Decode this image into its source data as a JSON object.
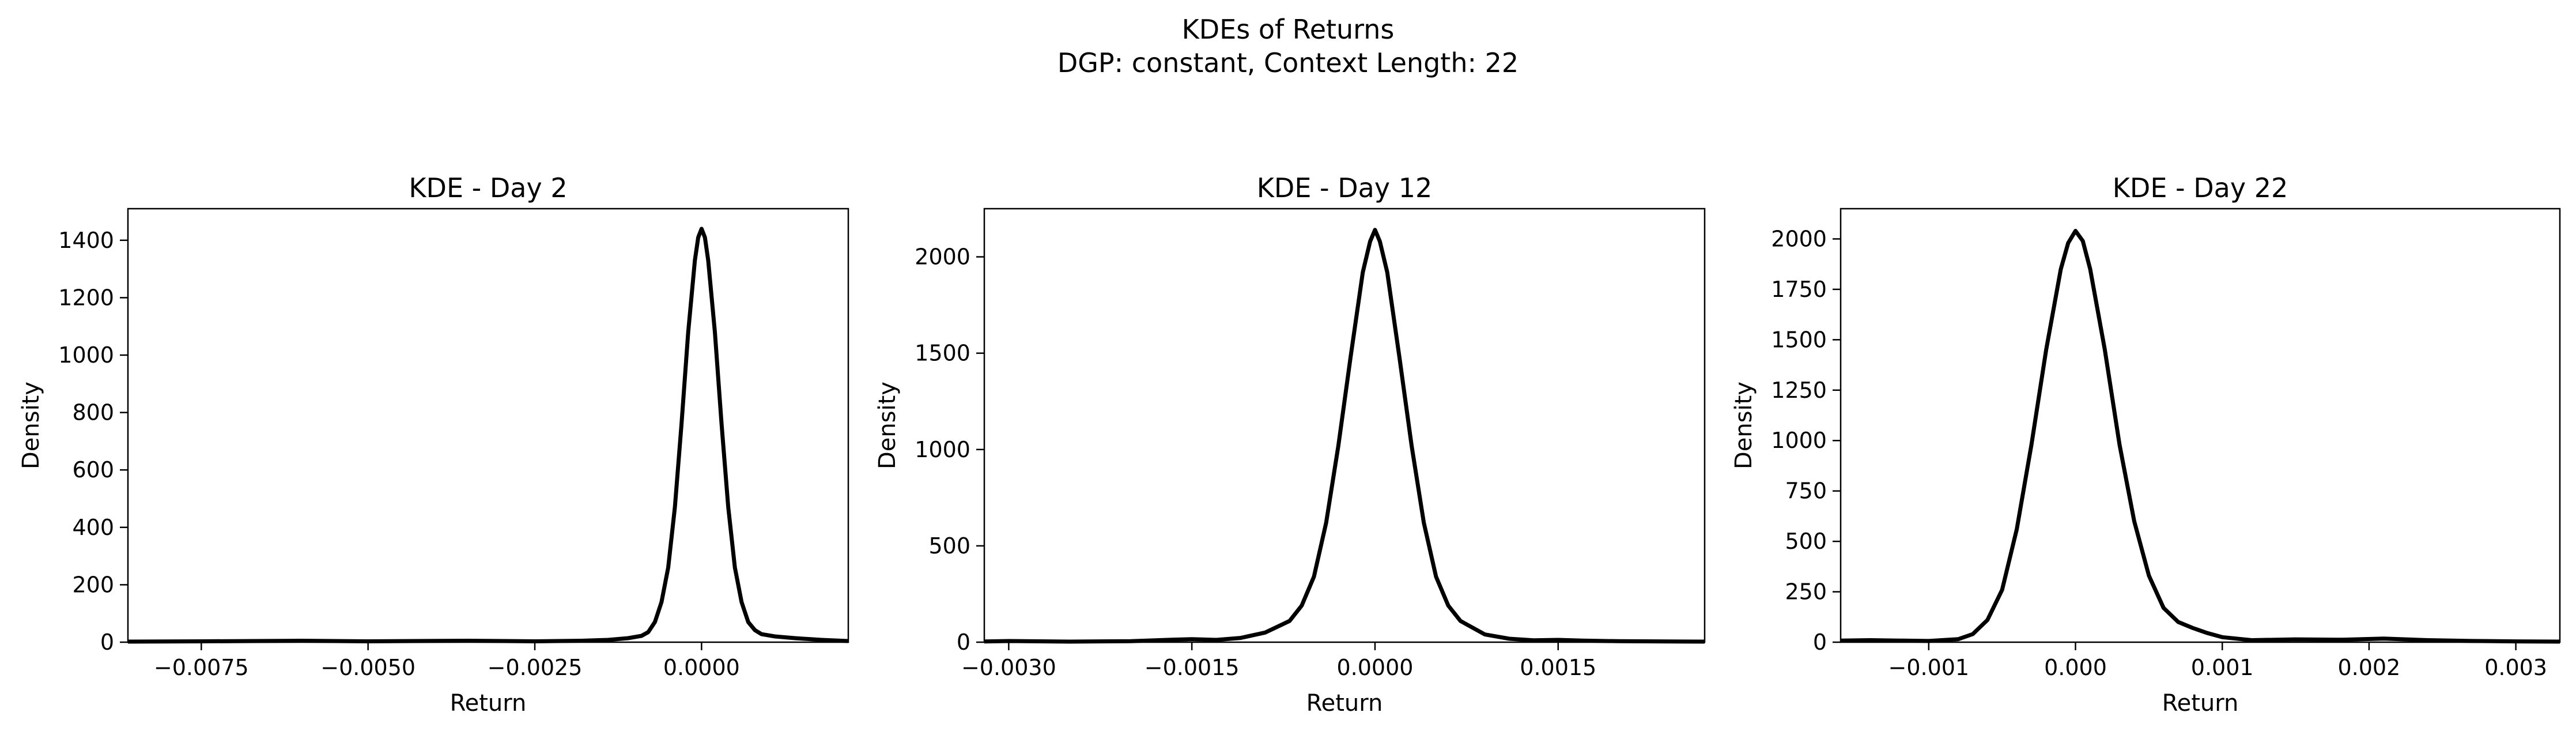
{
  "figure": {
    "title_line1": "KDEs of Returns",
    "title_line2": "DGP: constant, Context Length: 22"
  },
  "chart_data": [
    {
      "type": "line",
      "title": "KDE - Day 2",
      "xlabel": "Return",
      "ylabel": "Density",
      "xlim": [
        -0.0086,
        0.0022
      ],
      "ylim": [
        0,
        1510
      ],
      "xticks": [
        -0.0075,
        -0.005,
        -0.0025,
        0.0
      ],
      "xtick_labels": [
        "−0.0075",
        "−0.0050",
        "−0.0025",
        "0.0000"
      ],
      "yticks": [
        0,
        200,
        400,
        600,
        800,
        1000,
        1200,
        1400
      ],
      "ytick_labels": [
        "0",
        "200",
        "400",
        "600",
        "800",
        "1000",
        "1200",
        "1400"
      ],
      "color": "#000000",
      "series": [
        {
          "x": [
            -0.0086,
            -0.0075,
            -0.006,
            -0.005,
            -0.0035,
            -0.0025,
            -0.0018,
            -0.0014,
            -0.0011,
            -0.0009,
            -0.0008,
            -0.0007,
            -0.0006,
            -0.0005,
            -0.0004,
            -0.0003,
            -0.0002,
            -0.0001,
            -5e-05,
            0.0,
            5e-05,
            0.0001,
            0.0002,
            0.0003,
            0.0004,
            0.0005,
            0.0006,
            0.0007,
            0.0008,
            0.0009,
            0.0011,
            0.0014,
            0.0018,
            0.0022
          ],
          "y": [
            2,
            3,
            5,
            3,
            5,
            3,
            5,
            8,
            14,
            22,
            35,
            70,
            140,
            260,
            470,
            760,
            1080,
            1330,
            1410,
            1440,
            1410,
            1330,
            1080,
            760,
            470,
            260,
            140,
            70,
            42,
            28,
            20,
            14,
            8,
            4
          ]
        }
      ]
    },
    {
      "type": "line",
      "title": "KDE - Day 12",
      "xlabel": "Return",
      "ylabel": "Density",
      "xlim": [
        -0.0032,
        0.0027
      ],
      "ylim": [
        0,
        2250
      ],
      "xticks": [
        -0.003,
        -0.0015,
        0.0,
        0.0015
      ],
      "xtick_labels": [
        "−0.0030",
        "−0.0015",
        "0.0000",
        "0.0015"
      ],
      "yticks": [
        0,
        500,
        1000,
        1500,
        2000
      ],
      "ytick_labels": [
        "0",
        "500",
        "1000",
        "1500",
        "2000"
      ],
      "color": "#000000",
      "series": [
        {
          "x": [
            -0.0032,
            -0.003,
            -0.0025,
            -0.002,
            -0.0017,
            -0.0015,
            -0.0013,
            -0.0011,
            -0.0009,
            -0.0007,
            -0.0006,
            -0.0005,
            -0.0004,
            -0.0003,
            -0.0002,
            -0.0001,
            -4e-05,
            0.0,
            4e-05,
            0.0001,
            0.0002,
            0.0003,
            0.0004,
            0.0005,
            0.0006,
            0.0007,
            0.0009,
            0.0011,
            0.0013,
            0.0015,
            0.0017,
            0.002,
            0.0027
          ],
          "y": [
            4,
            6,
            3,
            5,
            12,
            16,
            12,
            22,
            50,
            110,
            190,
            340,
            620,
            1020,
            1480,
            1920,
            2080,
            2140,
            2080,
            1920,
            1480,
            1020,
            620,
            340,
            190,
            110,
            40,
            18,
            10,
            12,
            8,
            5,
            3
          ]
        }
      ]
    },
    {
      "type": "line",
      "title": "KDE - Day 22",
      "xlabel": "Return",
      "ylabel": "Density",
      "xlim": [
        -0.0016,
        0.0033
      ],
      "ylim": [
        0,
        2150
      ],
      "xticks": [
        -0.001,
        0.0,
        0.001,
        0.002,
        0.003
      ],
      "xtick_labels": [
        "−0.001",
        "0.000",
        "0.001",
        "0.002",
        "0.003"
      ],
      "yticks": [
        0,
        250,
        500,
        750,
        1000,
        1250,
        1500,
        1750,
        2000
      ],
      "ytick_labels": [
        "0",
        "250",
        "500",
        "750",
        "1000",
        "1250",
        "1500",
        "1750",
        "2000"
      ],
      "color": "#000000",
      "series": [
        {
          "x": [
            -0.0016,
            -0.0014,
            -0.0012,
            -0.001,
            -0.0008,
            -0.0007,
            -0.0006,
            -0.0005,
            -0.0004,
            -0.0003,
            -0.0002,
            -0.0001,
            -5e-05,
            0.0,
            5e-05,
            0.0001,
            0.0002,
            0.0003,
            0.0004,
            0.0005,
            0.0006,
            0.0007,
            0.0008,
            0.0009,
            0.001,
            0.0012,
            0.0015,
            0.0018,
            0.0021,
            0.0024,
            0.0027,
            0.003,
            0.0033
          ],
          "y": [
            8,
            10,
            8,
            6,
            15,
            40,
            110,
            260,
            560,
            980,
            1450,
            1850,
            1980,
            2040,
            1990,
            1850,
            1450,
            980,
            600,
            330,
            170,
            100,
            70,
            45,
            25,
            10,
            14,
            12,
            18,
            10,
            6,
            4,
            3
          ]
        }
      ]
    }
  ]
}
